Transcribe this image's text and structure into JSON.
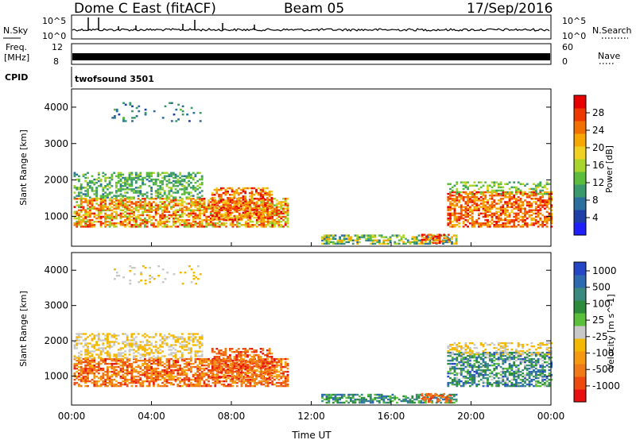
{
  "header": {
    "title": "Dome C East (fitACF)",
    "beam": "Beam 05",
    "date": "17/Sep/2016"
  },
  "status_panels": {
    "nsky": {
      "label": "N.Sky",
      "ticks": [
        "10^5",
        "10^0"
      ]
    },
    "nsearch": {
      "label": "N.Search",
      "ticks": [
        "10^5",
        "10^0"
      ]
    },
    "freq": {
      "label_line1": "Freq.",
      "label_line2": "[MHz]",
      "ticks": [
        "12",
        "8"
      ]
    },
    "nave": {
      "label": "Nave",
      "ticks": [
        "60",
        "0"
      ]
    },
    "cpid": {
      "label": "CPID",
      "value": "twofsound 3501"
    }
  },
  "chart_data": [
    {
      "type": "heatmap",
      "name": "power",
      "ylabel": "Slant Range [km]",
      "xlabel": "",
      "xlim": [
        "00:00",
        "24:00"
      ],
      "ylim": [
        180,
        4500
      ],
      "x_ticks": [
        "00:00",
        "04:00",
        "08:00",
        "12:00",
        "16:00",
        "20:00",
        "00:00"
      ],
      "y_ticks": [
        "1000",
        "2000",
        "3000",
        "4000"
      ],
      "colorbar": {
        "label": "Power [dB]",
        "ticks": [
          "4",
          "8",
          "12",
          "16",
          "20",
          "24",
          "28"
        ],
        "range": [
          0,
          32
        ],
        "colors": [
          "#1f1fff",
          "#1f3fa8",
          "#2c6e9e",
          "#3a9a6e",
          "#5cbc3c",
          "#a8d42c",
          "#f0d020",
          "#f6a800",
          "#f27000",
          "#ee3800",
          "#e80000"
        ]
      }
    },
    {
      "type": "heatmap",
      "name": "velocity",
      "ylabel": "Slant Range [km]",
      "xlabel": "Time UT",
      "xlim": [
        "00:00",
        "24:00"
      ],
      "ylim": [
        180,
        4500
      ],
      "x_ticks": [
        "00:00",
        "04:00",
        "08:00",
        "12:00",
        "16:00",
        "20:00",
        "00:00"
      ],
      "y_ticks": [
        "1000",
        "2000",
        "3000",
        "4000"
      ],
      "colorbar": {
        "label": "Velocity [m s^-1]",
        "ticks": [
          "1000",
          "500",
          "100",
          "25",
          "-25",
          "-100",
          "-500",
          "-1000"
        ],
        "colors": [
          "#2646c8",
          "#2e6ab0",
          "#3a8a80",
          "#2d8c3c",
          "#5abf3a",
          "#c8c8c8",
          "#f5b800",
          "#f59a10",
          "#f07a18",
          "#ee4a10",
          "#e81010"
        ]
      }
    }
  ]
}
